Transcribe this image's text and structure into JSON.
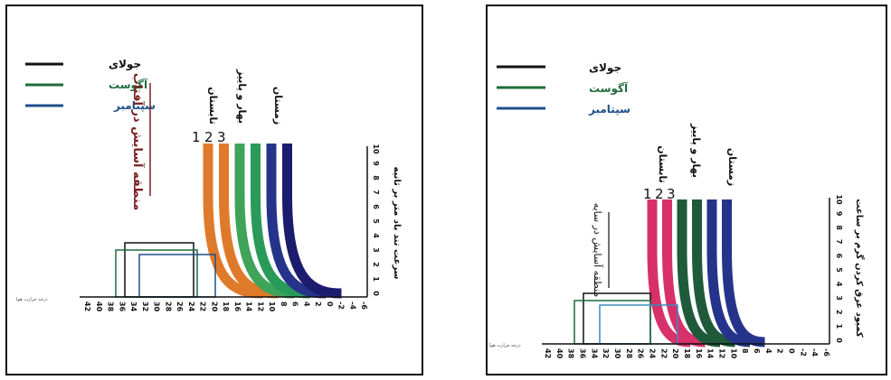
{
  "left": {
    "legend": [
      {
        "label": "جولای",
        "color": "#111111"
      },
      {
        "label": "آگوست",
        "color": "#1f6b3a"
      },
      {
        "label": "سپتامبر",
        "color": "#1f4f8a"
      }
    ],
    "zone_title": "منطقه آسایش در آفتاب",
    "zone_title_color": "#7a1f1f",
    "band_numbers": [
      "1",
      "2",
      "3"
    ],
    "season_labels": [
      "تابستان",
      "بهار و پاییز",
      "زمستان"
    ],
    "y_axis_title": "سرعت تند باد متر بر ثانیه",
    "y_ticks": [
      "0",
      "1",
      "2",
      "3",
      "4",
      "5",
      "6",
      "7",
      "8",
      "9",
      "10"
    ],
    "x_ticks": [
      "42",
      "40",
      "38",
      "36",
      "34",
      "32",
      "30",
      "28",
      "26",
      "24",
      "22",
      "20",
      "18",
      "16",
      "14",
      "12",
      "10",
      "8",
      "6",
      "4",
      "2",
      "0",
      "-2",
      "-4",
      "-6"
    ],
    "left_axis_note": "درجه حرارت هوا",
    "band_colors": [
      "#e07a2b",
      "#e07a2b",
      "#3fa35a",
      "#2a9a5a",
      "#25348a",
      "#1c1c6e"
    ]
  },
  "right": {
    "legend": [
      {
        "label": "جولای",
        "color": "#111111"
      },
      {
        "label": "آگوست",
        "color": "#1f6b3a"
      },
      {
        "label": "سپتامبر",
        "color": "#1f4f8a"
      }
    ],
    "zone_title": "منطقه آسایش در سایه",
    "band_numbers": [
      "1",
      "2",
      "3"
    ],
    "season_labels": [
      "تابستان",
      "بهار و پاییز",
      "زمستان"
    ],
    "y_axis_title": "کمبود عرق کردن گرم بر ساعت",
    "y_ticks": [
      "0",
      "1",
      "2",
      "3",
      "4",
      "5",
      "6",
      "7",
      "8",
      "9",
      "10"
    ],
    "x_ticks": [
      "42",
      "40",
      "38",
      "36",
      "34",
      "32",
      "30",
      "28",
      "26",
      "24",
      "22",
      "20",
      "18",
      "16",
      "14",
      "12",
      "10",
      "8",
      "6",
      "4",
      "2",
      "0",
      "-2",
      "-4",
      "-6"
    ],
    "left_axis_note": "درجه حرارت هوا",
    "band_colors": [
      "#d8306a",
      "#d8306a",
      "#1f5a3a",
      "#1f5a3a",
      "#25348a",
      "#25348a"
    ]
  }
}
